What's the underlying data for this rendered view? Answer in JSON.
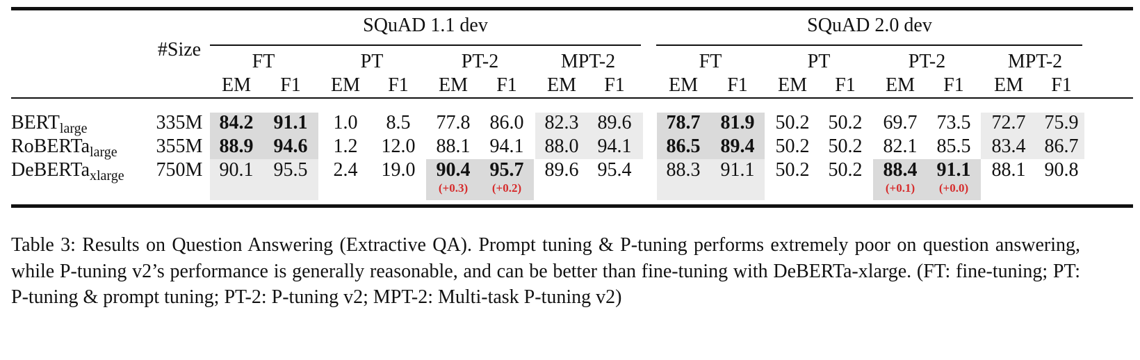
{
  "header": {
    "size_label": "#Size",
    "datasets": [
      "SQuAD 1.1 dev",
      "SQuAD 2.0 dev"
    ],
    "methods": [
      "FT",
      "PT",
      "PT-2",
      "MPT-2"
    ],
    "metrics": [
      "EM",
      "F1"
    ]
  },
  "rows": [
    {
      "model_base": "BERT",
      "model_sub": "large",
      "size": "335M",
      "values": [
        "84.2",
        "91.1",
        "1.0",
        "8.5",
        "77.8",
        "86.0",
        "82.3",
        "89.6",
        "78.7",
        "81.9",
        "50.2",
        "50.2",
        "69.7",
        "73.5",
        "72.7",
        "75.9"
      ],
      "bold": [
        true,
        true,
        false,
        false,
        false,
        false,
        false,
        false,
        true,
        true,
        false,
        false,
        false,
        false,
        false,
        false
      ],
      "deltas": [
        "",
        "",
        "",
        "",
        "",
        "",
        "",
        "",
        "",
        "",
        "",
        "",
        "",
        "",
        "",
        ""
      ]
    },
    {
      "model_base": "RoBERTa",
      "model_sub": "large",
      "size": "355M",
      "values": [
        "88.9",
        "94.6",
        "1.2",
        "12.0",
        "88.1",
        "94.1",
        "88.0",
        "94.1",
        "86.5",
        "89.4",
        "50.2",
        "50.2",
        "82.1",
        "85.5",
        "83.4",
        "86.7"
      ],
      "bold": [
        true,
        true,
        false,
        false,
        false,
        false,
        false,
        false,
        true,
        true,
        false,
        false,
        false,
        false,
        false,
        false
      ],
      "deltas": [
        "",
        "",
        "",
        "",
        "",
        "",
        "",
        "",
        "",
        "",
        "",
        "",
        "",
        "",
        "",
        ""
      ]
    },
    {
      "model_base": "DeBERTa",
      "model_sub": "xlarge",
      "size": "750M",
      "values": [
        "90.1",
        "95.5",
        "2.4",
        "19.0",
        "90.4",
        "95.7",
        "89.6",
        "95.4",
        "88.3",
        "91.1",
        "50.2",
        "50.2",
        "88.4",
        "91.1",
        "88.1",
        "90.8"
      ],
      "bold": [
        false,
        false,
        false,
        false,
        true,
        true,
        false,
        false,
        false,
        false,
        false,
        false,
        true,
        true,
        false,
        false
      ],
      "deltas": [
        "",
        "",
        "",
        "",
        "(+0.3)",
        "(+0.2)",
        "",
        "",
        "",
        "",
        "",
        "",
        "(+0.1)",
        "(+0.0)",
        "",
        ""
      ]
    }
  ],
  "caption": "Table 3: Results on Question Answering (Extractive QA). Prompt tuning & P-tuning performs extremely poor on question answering, while P-tuning v2’s performance is generally reasonable, and can be better than fine-tuning with DeBERTa-xlarge. (FT: fine-tuning; PT: P-tuning & prompt tuning; PT-2: P-tuning v2; MPT-2: Multi-task P-tuning v2)",
  "colors": {
    "text": "#111111",
    "delta_red": "#d62c2c",
    "shade_dark": "#dadada",
    "shade_light": "#ebebeb"
  }
}
